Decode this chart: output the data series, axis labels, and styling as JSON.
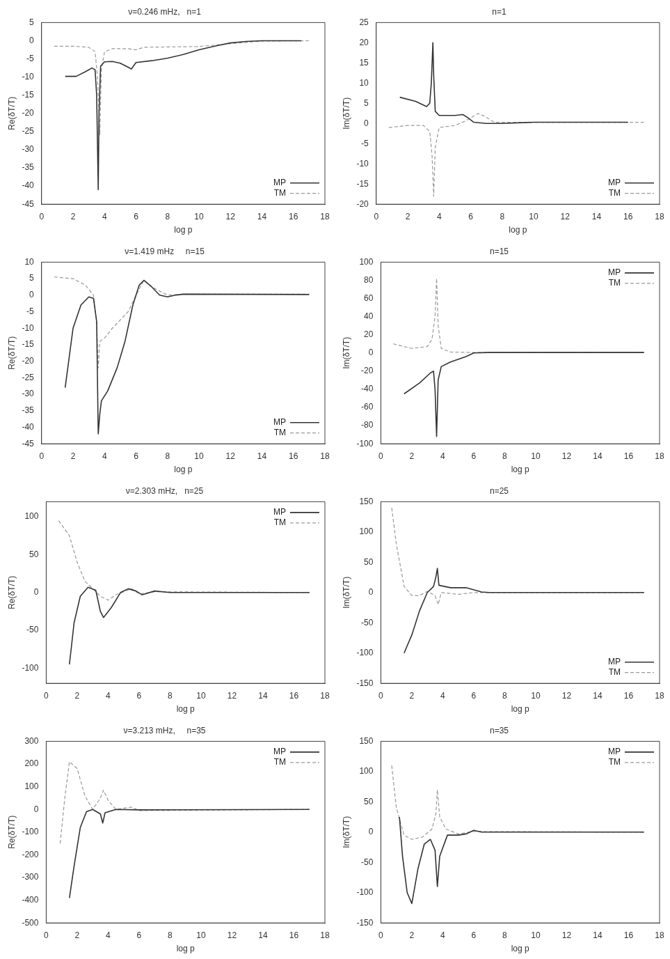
{
  "chart_data": [
    {
      "type": "line",
      "title": "ν=0.246 mHz,   n=1",
      "xlabel": "log p",
      "ylabel": "Re(δT/T)",
      "xlim": [
        0,
        18
      ],
      "xticks": [
        0,
        2,
        4,
        6,
        8,
        10,
        12,
        14,
        16,
        18
      ],
      "ylim": [
        -45,
        5
      ],
      "yticks": [
        -45,
        -40,
        -35,
        -30,
        -25,
        -20,
        -15,
        -10,
        -5,
        0,
        5
      ],
      "legend": "bottom right",
      "grid": false,
      "marker": "none",
      "series": [
        {
          "name": "MP",
          "color": "#333333",
          "line_style": "solid",
          "x": [
            1.5,
            2.2,
            2.8,
            3.2,
            3.4,
            3.5,
            3.6,
            3.65,
            3.75,
            4.0,
            4.5,
            5.0,
            5.5,
            5.7,
            6.0,
            7,
            8,
            9,
            10,
            11,
            12,
            13,
            14,
            16,
            16.5
          ],
          "values": [
            -9.8,
            -9.8,
            -8.5,
            -7.5,
            -8,
            -15,
            -41,
            -20,
            -7,
            -5.8,
            -5.7,
            -6.2,
            -7.3,
            -7.8,
            -6,
            -5.5,
            -4.8,
            -3.8,
            -2.5,
            -1.5,
            -0.6,
            -0.2,
            0,
            0,
            0
          ]
        },
        {
          "name": "TM",
          "color": "#999999",
          "line_style": "dashed",
          "x": [
            0.8,
            2,
            3,
            3.4,
            3.55,
            3.6,
            3.7,
            3.8,
            4.0,
            4.5,
            5.5,
            6,
            6.5,
            10,
            12,
            14,
            17
          ],
          "values": [
            -1.5,
            -1.5,
            -1.8,
            -3,
            -10,
            -15,
            -26,
            -8,
            -3,
            -2.2,
            -2.2,
            -2.5,
            -1.8,
            -1.6,
            -0.8,
            -0.1,
            0
          ]
        }
      ]
    },
    {
      "type": "line",
      "title": "n=1",
      "xlabel": "log p",
      "ylabel": "Im(δT/T)",
      "xlim": [
        0,
        18
      ],
      "xticks": [
        0,
        2,
        4,
        6,
        8,
        10,
        12,
        14,
        16,
        18
      ],
      "ylim": [
        -20,
        25
      ],
      "yticks": [
        -20,
        -15,
        -10,
        -5,
        0,
        5,
        10,
        15,
        20,
        25
      ],
      "legend": "bottom right",
      "grid": false,
      "marker": "none",
      "series": [
        {
          "name": "MP",
          "color": "#333333",
          "line_style": "solid",
          "x": [
            1.5,
            2.5,
            3.2,
            3.4,
            3.5,
            3.6,
            3.65,
            3.75,
            4.0,
            5.0,
            5.5,
            5.8,
            6.2,
            7,
            8,
            10,
            12,
            16
          ],
          "values": [
            6.5,
            5.5,
            4.2,
            5,
            10,
            20,
            12,
            3,
            2,
            2,
            2.2,
            1.5,
            0.3,
            0,
            0,
            0.3,
            0.3,
            0.3
          ]
        },
        {
          "name": "TM",
          "color": "#999999",
          "line_style": "dashed",
          "x": [
            0.8,
            2,
            3,
            3.4,
            3.55,
            3.65,
            3.75,
            4,
            5,
            5.6,
            6.5,
            7,
            7.5,
            10,
            17
          ],
          "values": [
            -1,
            -0.5,
            -0.5,
            -2,
            -8,
            -18,
            -6,
            -1,
            -0.5,
            0.5,
            2.5,
            1.5,
            0.3,
            0.3,
            0.3
          ]
        }
      ]
    },
    {
      "type": "line",
      "title": "ν=1.419 mHz     n=15",
      "xlabel": "log p",
      "ylabel": "Re(δT/T)",
      "xlim": [
        0,
        18
      ],
      "xticks": [
        0,
        2,
        4,
        6,
        8,
        10,
        12,
        14,
        16,
        18
      ],
      "ylim": [
        -45,
        10
      ],
      "yticks": [
        -45,
        -40,
        -35,
        -30,
        -25,
        -20,
        -15,
        -10,
        -5,
        0,
        5,
        10
      ],
      "legend": "bottom right",
      "grid": false,
      "marker": "none",
      "series": [
        {
          "name": "MP",
          "color": "#333333",
          "line_style": "solid",
          "x": [
            1.5,
            2,
            2.5,
            3,
            3.3,
            3.5,
            3.6,
            3.7,
            3.8,
            4.2,
            4.8,
            5.3,
            5.8,
            6.2,
            6.5,
            7,
            7.5,
            8,
            8.5,
            9,
            17
          ],
          "values": [
            -28,
            -10,
            -3,
            -0.5,
            -1,
            -8,
            -42,
            -36,
            -32,
            -29,
            -22,
            -14,
            -3,
            3,
            4.5,
            2.5,
            0,
            -0.5,
            0,
            0.3,
            0.2
          ]
        },
        {
          "name": "TM",
          "color": "#999999",
          "line_style": "dashed",
          "x": [
            0.8,
            2,
            2.8,
            3.3,
            3.5,
            3.6,
            3.7,
            4.0,
            4.5,
            5.5,
            6,
            6.5,
            7,
            8,
            9,
            17
          ],
          "values": [
            5.5,
            5,
            3,
            0,
            -8,
            -22,
            -14,
            -13,
            -10,
            -5,
            0,
            4.5,
            2.5,
            0,
            0.3,
            0.3
          ]
        }
      ]
    },
    {
      "type": "line",
      "title": "n=15",
      "xlabel": "log p",
      "ylabel": "Im(δT/T)",
      "xlim": [
        0,
        18
      ],
      "xticks": [
        0,
        2,
        4,
        6,
        8,
        10,
        12,
        14,
        16,
        18
      ],
      "ylim": [
        -100,
        100
      ],
      "yticks": [
        -100,
        -80,
        -60,
        -40,
        -20,
        0,
        20,
        40,
        60,
        80,
        100
      ],
      "legend": "top right",
      "grid": false,
      "marker": "none",
      "series": [
        {
          "name": "MP",
          "color": "#333333",
          "line_style": "solid",
          "x": [
            1.5,
            2.5,
            3.2,
            3.4,
            3.5,
            3.6,
            3.7,
            3.9,
            4.5,
            5.5,
            6,
            7,
            17
          ],
          "values": [
            -45,
            -33,
            -22,
            -20,
            -40,
            -92,
            -30,
            -15,
            -10,
            -4,
            0,
            0.5,
            0.5
          ]
        },
        {
          "name": "TM",
          "color": "#999999",
          "line_style": "dashed",
          "x": [
            0.8,
            2,
            3,
            3.3,
            3.5,
            3.6,
            3.7,
            3.9,
            4.5,
            6,
            17
          ],
          "values": [
            10,
            5,
            7,
            15,
            40,
            82,
            30,
            5,
            1,
            0.5,
            0.5
          ]
        }
      ]
    },
    {
      "type": "line",
      "title": "ν=2.303 mHz,   n=25",
      "xlabel": "log p",
      "ylabel": "Re(δT/T)",
      "xlim": [
        0,
        18
      ],
      "xticks": [
        0,
        2,
        4,
        6,
        8,
        10,
        12,
        14,
        16,
        18
      ],
      "ylim": [
        -120,
        120
      ],
      "yticks": [
        -100,
        -50,
        0,
        50,
        100
      ],
      "legend": "top right",
      "grid": false,
      "marker": "none",
      "series": [
        {
          "name": "MP",
          "color": "#333333",
          "line_style": "solid",
          "x": [
            1.5,
            1.8,
            2.2,
            2.7,
            3.2,
            3.5,
            3.7,
            4.2,
            4.8,
            5.3,
            5.8,
            6.2,
            7,
            8,
            17
          ],
          "values": [
            -95,
            -40,
            -5,
            7,
            3,
            -25,
            -33,
            -20,
            0,
            5,
            2,
            -3,
            2,
            0,
            0
          ]
        },
        {
          "name": "TM",
          "color": "#999999",
          "line_style": "dashed",
          "x": [
            0.8,
            1.5,
            2,
            2.5,
            3,
            3.5,
            4,
            4.5,
            5.5,
            6,
            7,
            17
          ],
          "values": [
            95,
            75,
            40,
            15,
            5,
            -5,
            -10,
            -3,
            5,
            -2,
            1,
            0
          ]
        }
      ]
    },
    {
      "type": "line",
      "title": "n=25",
      "xlabel": "log p",
      "ylabel": "Im(δT/T)",
      "xlim": [
        0,
        18
      ],
      "xticks": [
        0,
        2,
        4,
        6,
        8,
        10,
        12,
        14,
        16,
        18
      ],
      "ylim": [
        -150,
        150
      ],
      "yticks": [
        -150,
        -100,
        -50,
        0,
        50,
        100,
        150
      ],
      "legend": "bottom right",
      "grid": false,
      "marker": "none",
      "series": [
        {
          "name": "MP",
          "color": "#333333",
          "line_style": "solid",
          "x": [
            1.5,
            2,
            2.5,
            3,
            3.4,
            3.55,
            3.65,
            3.75,
            4.5,
            5.5,
            6.5,
            7,
            17
          ],
          "values": [
            -100,
            -70,
            -30,
            0,
            10,
            25,
            40,
            12,
            8,
            8,
            1,
            0,
            0
          ]
        },
        {
          "name": "TM",
          "color": "#999999",
          "line_style": "dashed",
          "x": [
            0.7,
            1,
            1.5,
            2,
            2.5,
            3,
            3.5,
            3.7,
            3.9,
            5,
            6,
            17
          ],
          "values": [
            140,
            80,
            10,
            -5,
            -5,
            2,
            -5,
            -20,
            0,
            -3,
            0,
            0
          ]
        }
      ]
    },
    {
      "type": "line",
      "title": "ν=3.213 mHz,     n=35",
      "xlabel": "log p",
      "ylabel": "Re(δT/T)",
      "xlim": [
        0,
        18
      ],
      "xticks": [
        0,
        2,
        4,
        6,
        8,
        10,
        12,
        14,
        16,
        18
      ],
      "ylim": [
        -500,
        300
      ],
      "yticks": [
        -500,
        -400,
        -300,
        -200,
        -100,
        0,
        100,
        200,
        300
      ],
      "legend": "top right",
      "grid": false,
      "marker": "none",
      "series": [
        {
          "name": "MP",
          "color": "#333333",
          "line_style": "solid",
          "x": [
            1.5,
            1.8,
            2.2,
            2.6,
            3,
            3.5,
            3.65,
            3.8,
            4.5,
            6,
            17
          ],
          "values": [
            -390,
            -250,
            -80,
            -10,
            0,
            -20,
            -60,
            -15,
            0,
            -2,
            0
          ]
        },
        {
          "name": "TM",
          "color": "#999999",
          "line_style": "dashed",
          "x": [
            0.9,
            1.2,
            1.5,
            2,
            2.5,
            3,
            3.5,
            3.7,
            4,
            4.5,
            5.5,
            6,
            17
          ],
          "values": [
            -150,
            50,
            210,
            180,
            60,
            0,
            50,
            85,
            40,
            0,
            10,
            -5,
            0
          ]
        }
      ]
    },
    {
      "type": "line",
      "title": "n=35",
      "xlabel": "log p",
      "ylabel": "Im(δT/T)",
      "xlim": [
        0,
        18
      ],
      "xticks": [
        0,
        2,
        4,
        6,
        8,
        10,
        12,
        14,
        16,
        18
      ],
      "ylim": [
        -150,
        150
      ],
      "yticks": [
        -150,
        -100,
        -50,
        0,
        50,
        100,
        150
      ],
      "legend": "top right",
      "grid": false,
      "marker": "none",
      "series": [
        {
          "name": "MP",
          "color": "#333333",
          "line_style": "solid",
          "x": [
            1.2,
            1.4,
            1.7,
            2,
            2.4,
            2.8,
            3.2,
            3.5,
            3.65,
            3.8,
            4.3,
            5,
            5.5,
            6,
            6.5,
            7,
            17
          ],
          "values": [
            25,
            -40,
            -100,
            -118,
            -60,
            -20,
            -12,
            -30,
            -90,
            -40,
            -5,
            -5,
            -3,
            3,
            0,
            0,
            0
          ]
        },
        {
          "name": "TM",
          "color": "#999999",
          "line_style": "dashed",
          "x": [
            0.7,
            1,
            1.5,
            2,
            2.7,
            3.3,
            3.55,
            3.65,
            3.8,
            4.2,
            5,
            6,
            17
          ],
          "values": [
            110,
            40,
            -5,
            -12,
            -8,
            5,
            30,
            70,
            25,
            5,
            -3,
            1,
            0
          ]
        }
      ]
    }
  ]
}
